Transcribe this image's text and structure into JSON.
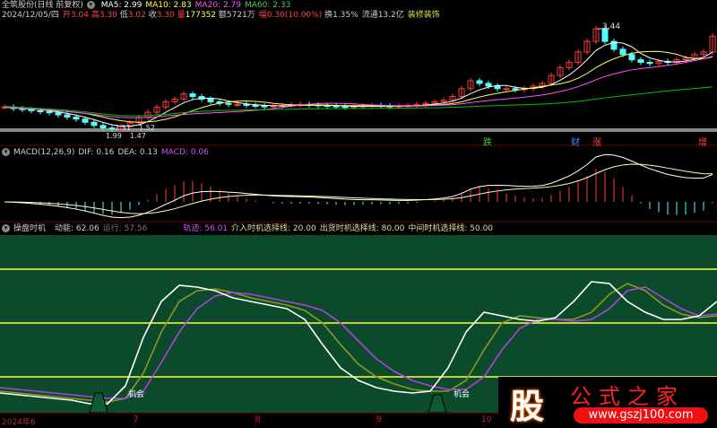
{
  "header": {
    "title": "全筑股份(日线 前复权)",
    "ma5": "MA5: 2.99",
    "ma10": "MA10: 2.83",
    "ma20": "MA20: 2.79",
    "ma60": "MA60: 2.33",
    "date": "2024/12/05/四",
    "open_l": "开",
    "open": "3.04",
    "high_l": "高",
    "high": "3.30",
    "low_l": "低",
    "low": "3.02",
    "close_l": "收",
    "close": "3.30",
    "vol_l": "量",
    "vol": "177352",
    "amt": "额5721万",
    "chg_l": "幅",
    "chg": "0.30(10.00%)",
    "turn": "换1.35%",
    "float": "流通13.2亿",
    "industry": "装修装饰"
  },
  "price": {
    "high_label": "3.44",
    "low_label1": "1.51",
    "low_label2": "1.52",
    "low_label3": "1.99",
    "low_label4": "1.47",
    "closes": [
      1.95,
      1.92,
      1.9,
      1.88,
      1.86,
      1.84,
      1.8,
      1.76,
      1.72,
      1.66,
      1.6,
      1.55,
      1.53,
      1.58,
      1.65,
      1.75,
      1.85,
      1.95,
      2.05,
      2.1,
      2.2,
      2.15,
      2.1,
      2.05,
      2.02,
      2.0,
      2.0,
      1.98,
      1.97,
      1.96,
      1.97,
      1.98,
      1.99,
      2.0,
      1.99,
      1.98,
      1.97,
      1.96,
      1.95,
      1.96,
      1.97,
      1.98,
      1.97,
      1.96,
      1.97,
      1.98,
      2.0,
      2.02,
      2.05,
      2.08,
      2.15,
      2.3,
      2.45,
      2.4,
      2.35,
      2.3,
      2.3,
      2.28,
      2.3,
      2.35,
      2.4,
      2.55,
      2.7,
      2.8,
      3.0,
      3.2,
      3.44,
      3.2,
      3.05,
      2.95,
      2.85,
      2.8,
      2.78,
      2.82,
      2.8,
      2.85,
      2.88,
      2.95,
      3.0,
      3.3
    ]
  },
  "signals": [
    {
      "text": "跌",
      "color": "#3c3"
    },
    {
      "text": "财",
      "color": "#39f"
    },
    {
      "text": "涨",
      "color": "#f44"
    },
    {
      "text": "增",
      "color": "#f44"
    }
  ],
  "macd": {
    "title": "MACD(12,26,9)",
    "dif": "DIF: 0.16",
    "dea": "DEA: 0.13",
    "macd": "MACD: 0.06"
  },
  "timing": {
    "title": "操盘时机",
    "power": "动能: 62.06",
    "run": "运行: 57.56",
    "track": "轨迹: 56.01",
    "entry": "介入时机选择线: 20.00",
    "exit": "出货时机选择线: 80.00",
    "mid": "中间时机选择线: 50.00",
    "levels": [
      80,
      50,
      20
    ],
    "chance_label": "机会",
    "white": [
      11,
      10,
      9,
      8,
      7,
      5,
      5,
      15,
      42,
      62,
      71,
      70,
      68,
      64,
      62,
      60,
      58,
      52,
      38,
      25,
      18,
      14,
      12,
      11,
      12,
      25,
      45,
      56,
      54,
      52,
      51,
      53,
      62,
      73,
      72,
      62,
      56,
      52,
      52,
      54,
      62
    ],
    "olive": [
      12,
      11,
      10,
      9,
      8,
      7,
      6,
      8,
      22,
      45,
      62,
      68,
      69,
      67,
      64,
      62,
      60,
      57,
      50,
      38,
      27,
      20,
      16,
      13,
      12,
      12,
      18,
      35,
      50,
      54,
      53,
      52,
      52,
      56,
      66,
      72,
      68,
      60,
      55,
      53,
      54
    ],
    "purple": [
      14,
      13,
      12,
      11,
      10,
      9,
      8,
      8,
      12,
      28,
      45,
      58,
      65,
      67,
      66,
      64,
      62,
      60,
      57,
      50,
      40,
      30,
      23,
      18,
      15,
      13,
      13,
      20,
      35,
      47,
      52,
      52,
      51,
      52,
      58,
      68,
      70,
      64,
      58,
      54,
      55
    ]
  },
  "axis": {
    "labels": [
      "2024年6",
      "7",
      "8",
      "9",
      "10"
    ]
  },
  "watermark": {
    "char": "股",
    "name": "公式之家",
    "url": "www.gszj100.com"
  },
  "colors": {
    "up": "#ff3c3c",
    "down": "#54ffff",
    "ma5": "#ffffff",
    "ma10": "#ffff54",
    "ma20": "#ff54ff",
    "ma60": "#00c000",
    "panel_bg": "#0b4a2a",
    "level": "#ffff40"
  }
}
